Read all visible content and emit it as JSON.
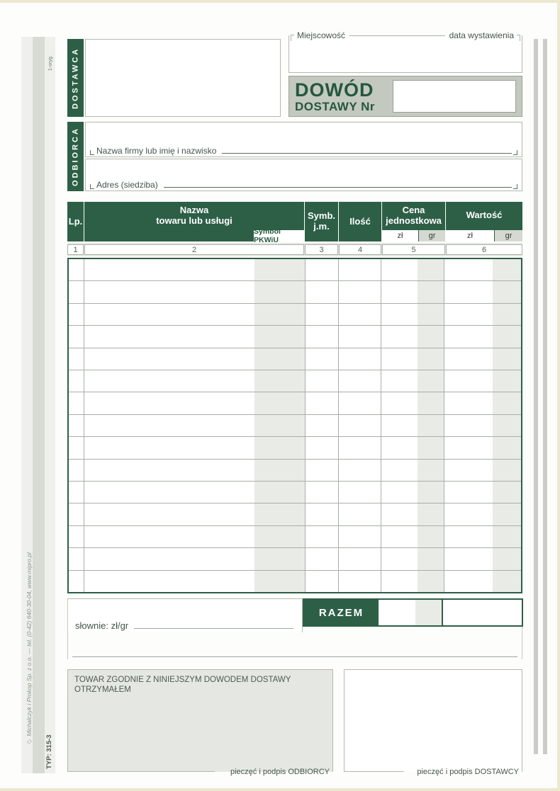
{
  "page": {
    "copy_code": "1-oryg.",
    "side_note": "◇ Michalczyk i Prokop  Sp. z o.o. — tel. (0-42) 640-30-04, www.mipro.pl",
    "type_code": "TYP: 315-3"
  },
  "header": {
    "dostawca_label": "DOSTAWCA",
    "miejscowosc_label": "Miejscowość",
    "data_wystawienia_label": "data wystawienia",
    "title_line1": "DOWÓD",
    "title_line2": "DOSTAWY Nr",
    "nr_value": ""
  },
  "odbiorca": {
    "label": "ODBIORCA",
    "field1_label": "Nazwa firmy lub imię i nazwisko",
    "field1_value": "",
    "field2_label": "Adres (siedziba)",
    "field2_value": ""
  },
  "table": {
    "col_lp": "Lp.",
    "col_nazwa_line1": "Nazwa",
    "col_nazwa_line2": "towaru lub usługi",
    "col_pkwiu_badge": "Symbol PKWiU",
    "col_symb_line1": "Symb.",
    "col_symb_line2": "j.m.",
    "col_ilosc": "Ilość",
    "col_cena_line1": "Cena",
    "col_cena_line2": "jednostkowa",
    "col_wartosc": "Wartość",
    "sub_zl": "zł",
    "sub_gr": "gr",
    "col_numbers": [
      "1",
      "2",
      "3",
      "4",
      "5",
      "6"
    ],
    "row_count": 15,
    "rows": []
  },
  "summary": {
    "razem_label": "RAZEM",
    "razem_zl": "",
    "razem_gr": "",
    "slownie_label": "słownie: zł/gr",
    "slownie_value": ""
  },
  "footer": {
    "received_text": "TOWAR ZGODNIE Z NINIEJSZYM DOWODEM DOSTAWY OTRZYMAŁEM",
    "odbiorca_sign_label": "pieczęć i podpis ODBIORCY",
    "dostawca_sign_label": "pieczęć i podpis DOSTAWCY"
  },
  "colors": {
    "green": "#2d5f47",
    "title_green": "#24573f",
    "shading": "#e9ebe6",
    "dowod_bg": "#c4c9c0"
  }
}
